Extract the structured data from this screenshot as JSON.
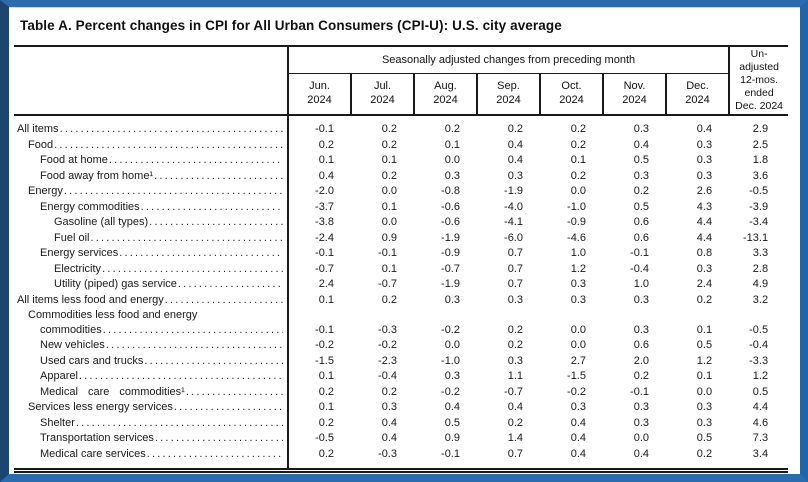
{
  "title": "Table A. Percent changes in CPI for All Urban Consumers (CPI-U): U.S. city average",
  "colors": {
    "frame_top": "#2a6cae",
    "frame_bottom": "#2a6cae",
    "frame_left": "#1c4570",
    "frame_right": "#2264a8",
    "rule": "#1a1a1a"
  },
  "table": {
    "group_header": "Seasonally adjusted changes from preceding month",
    "months": [
      {
        "m": "Jun.",
        "y": "2024"
      },
      {
        "m": "Jul.",
        "y": "2024"
      },
      {
        "m": "Aug.",
        "y": "2024"
      },
      {
        "m": "Sep.",
        "y": "2024"
      },
      {
        "m": "Oct.",
        "y": "2024"
      },
      {
        "m": "Nov.",
        "y": "2024"
      },
      {
        "m": "Dec.",
        "y": "2024"
      }
    ],
    "unadjusted_header_lines": [
      "Un-",
      "adjusted",
      "12-mos.",
      "ended",
      "Dec. 2024"
    ],
    "rows": [
      {
        "label": "All items",
        "indent": 0,
        "values": [
          "-0.1",
          "0.2",
          "0.2",
          "0.2",
          "0.2",
          "0.3",
          "0.4"
        ],
        "yr": "2.9"
      },
      {
        "label": "Food",
        "indent": 1,
        "values": [
          "0.2",
          "0.2",
          "0.1",
          "0.4",
          "0.2",
          "0.4",
          "0.3"
        ],
        "yr": "2.5"
      },
      {
        "label": "Food at home",
        "indent": 2,
        "values": [
          "0.1",
          "0.1",
          "0.0",
          "0.4",
          "0.1",
          "0.5",
          "0.3"
        ],
        "yr": "1.8"
      },
      {
        "label": "Food away from home¹",
        "indent": 2,
        "values": [
          "0.4",
          "0.2",
          "0.3",
          "0.3",
          "0.2",
          "0.3",
          "0.3"
        ],
        "yr": "3.6"
      },
      {
        "label": "Energy",
        "indent": 1,
        "values": [
          "-2.0",
          "0.0",
          "-0.8",
          "-1.9",
          "0.0",
          "0.2",
          "2.6"
        ],
        "yr": "-0.5"
      },
      {
        "label": "Energy commodities",
        "indent": 2,
        "values": [
          "-3.7",
          "0.1",
          "-0.6",
          "-4.0",
          "-1.0",
          "0.5",
          "4.3"
        ],
        "yr": "-3.9"
      },
      {
        "label": "Gasoline (all types)",
        "indent": 3,
        "values": [
          "-3.8",
          "0.0",
          "-0.6",
          "-4.1",
          "-0.9",
          "0.6",
          "4.4"
        ],
        "yr": "-3.4"
      },
      {
        "label": "Fuel oil",
        "indent": 3,
        "values": [
          "-2.4",
          "0.9",
          "-1.9",
          "-6.0",
          "-4.6",
          "0.6",
          "4.4"
        ],
        "yr": "-13.1"
      },
      {
        "label": "Energy services",
        "indent": 2,
        "values": [
          "-0.1",
          "-0.1",
          "-0.9",
          "0.7",
          "1.0",
          "-0.1",
          "0.8"
        ],
        "yr": "3.3"
      },
      {
        "label": "Electricity",
        "indent": 3,
        "values": [
          "-0.7",
          "0.1",
          "-0.7",
          "0.7",
          "1.2",
          "-0.4",
          "0.3"
        ],
        "yr": "2.8"
      },
      {
        "label": "Utility (piped) gas service",
        "indent": 3,
        "values": [
          "2.4",
          "-0.7",
          "-1.9",
          "0.7",
          "0.3",
          "1.0",
          "2.4"
        ],
        "yr": "4.9"
      },
      {
        "label": "All items less food and energy",
        "indent": 0,
        "values": [
          "0.1",
          "0.2",
          "0.3",
          "0.3",
          "0.3",
          "0.3",
          "0.2"
        ],
        "yr": "3.2"
      },
      {
        "label": "Commodities less food and energy",
        "label2": "commodities",
        "indent": 1,
        "values": [
          "-0.1",
          "-0.3",
          "-0.2",
          "0.2",
          "0.0",
          "0.3",
          "0.1"
        ],
        "yr": "-0.5"
      },
      {
        "label": "New vehicles",
        "indent": 2,
        "values": [
          "-0.2",
          "-0.2",
          "0.0",
          "0.2",
          "0.0",
          "0.6",
          "0.5"
        ],
        "yr": "-0.4"
      },
      {
        "label": "Used cars and trucks",
        "indent": 2,
        "values": [
          "-1.5",
          "-2.3",
          "-1.0",
          "0.3",
          "2.7",
          "2.0",
          "1.2"
        ],
        "yr": "-3.3"
      },
      {
        "label": "Apparel",
        "indent": 2,
        "values": [
          "0.1",
          "-0.4",
          "0.3",
          "1.1",
          "-1.5",
          "0.2",
          "0.1"
        ],
        "yr": "1.2"
      },
      {
        "label": "Medical care commodities¹",
        "indent": 2,
        "spaced": true,
        "values": [
          "0.2",
          "0.2",
          "-0.2",
          "-0.7",
          "-0.2",
          "-0.1",
          "0.0"
        ],
        "yr": "0.5"
      },
      {
        "label": "Services less energy services",
        "indent": 1,
        "values": [
          "0.1",
          "0.3",
          "0.4",
          "0.4",
          "0.3",
          "0.3",
          "0.3"
        ],
        "yr": "4.4"
      },
      {
        "label": "Shelter",
        "indent": 2,
        "values": [
          "0.2",
          "0.4",
          "0.5",
          "0.2",
          "0.4",
          "0.3",
          "0.3"
        ],
        "yr": "4.6"
      },
      {
        "label": "Transportation services",
        "indent": 2,
        "values": [
          "-0.5",
          "0.4",
          "0.9",
          "1.4",
          "0.4",
          "0.0",
          "0.5"
        ],
        "yr": "7.3"
      },
      {
        "label": "Medical care services",
        "indent": 2,
        "values": [
          "0.2",
          "-0.3",
          "-0.1",
          "0.7",
          "0.4",
          "0.4",
          "0.2"
        ],
        "yr": "3.4"
      }
    ]
  }
}
